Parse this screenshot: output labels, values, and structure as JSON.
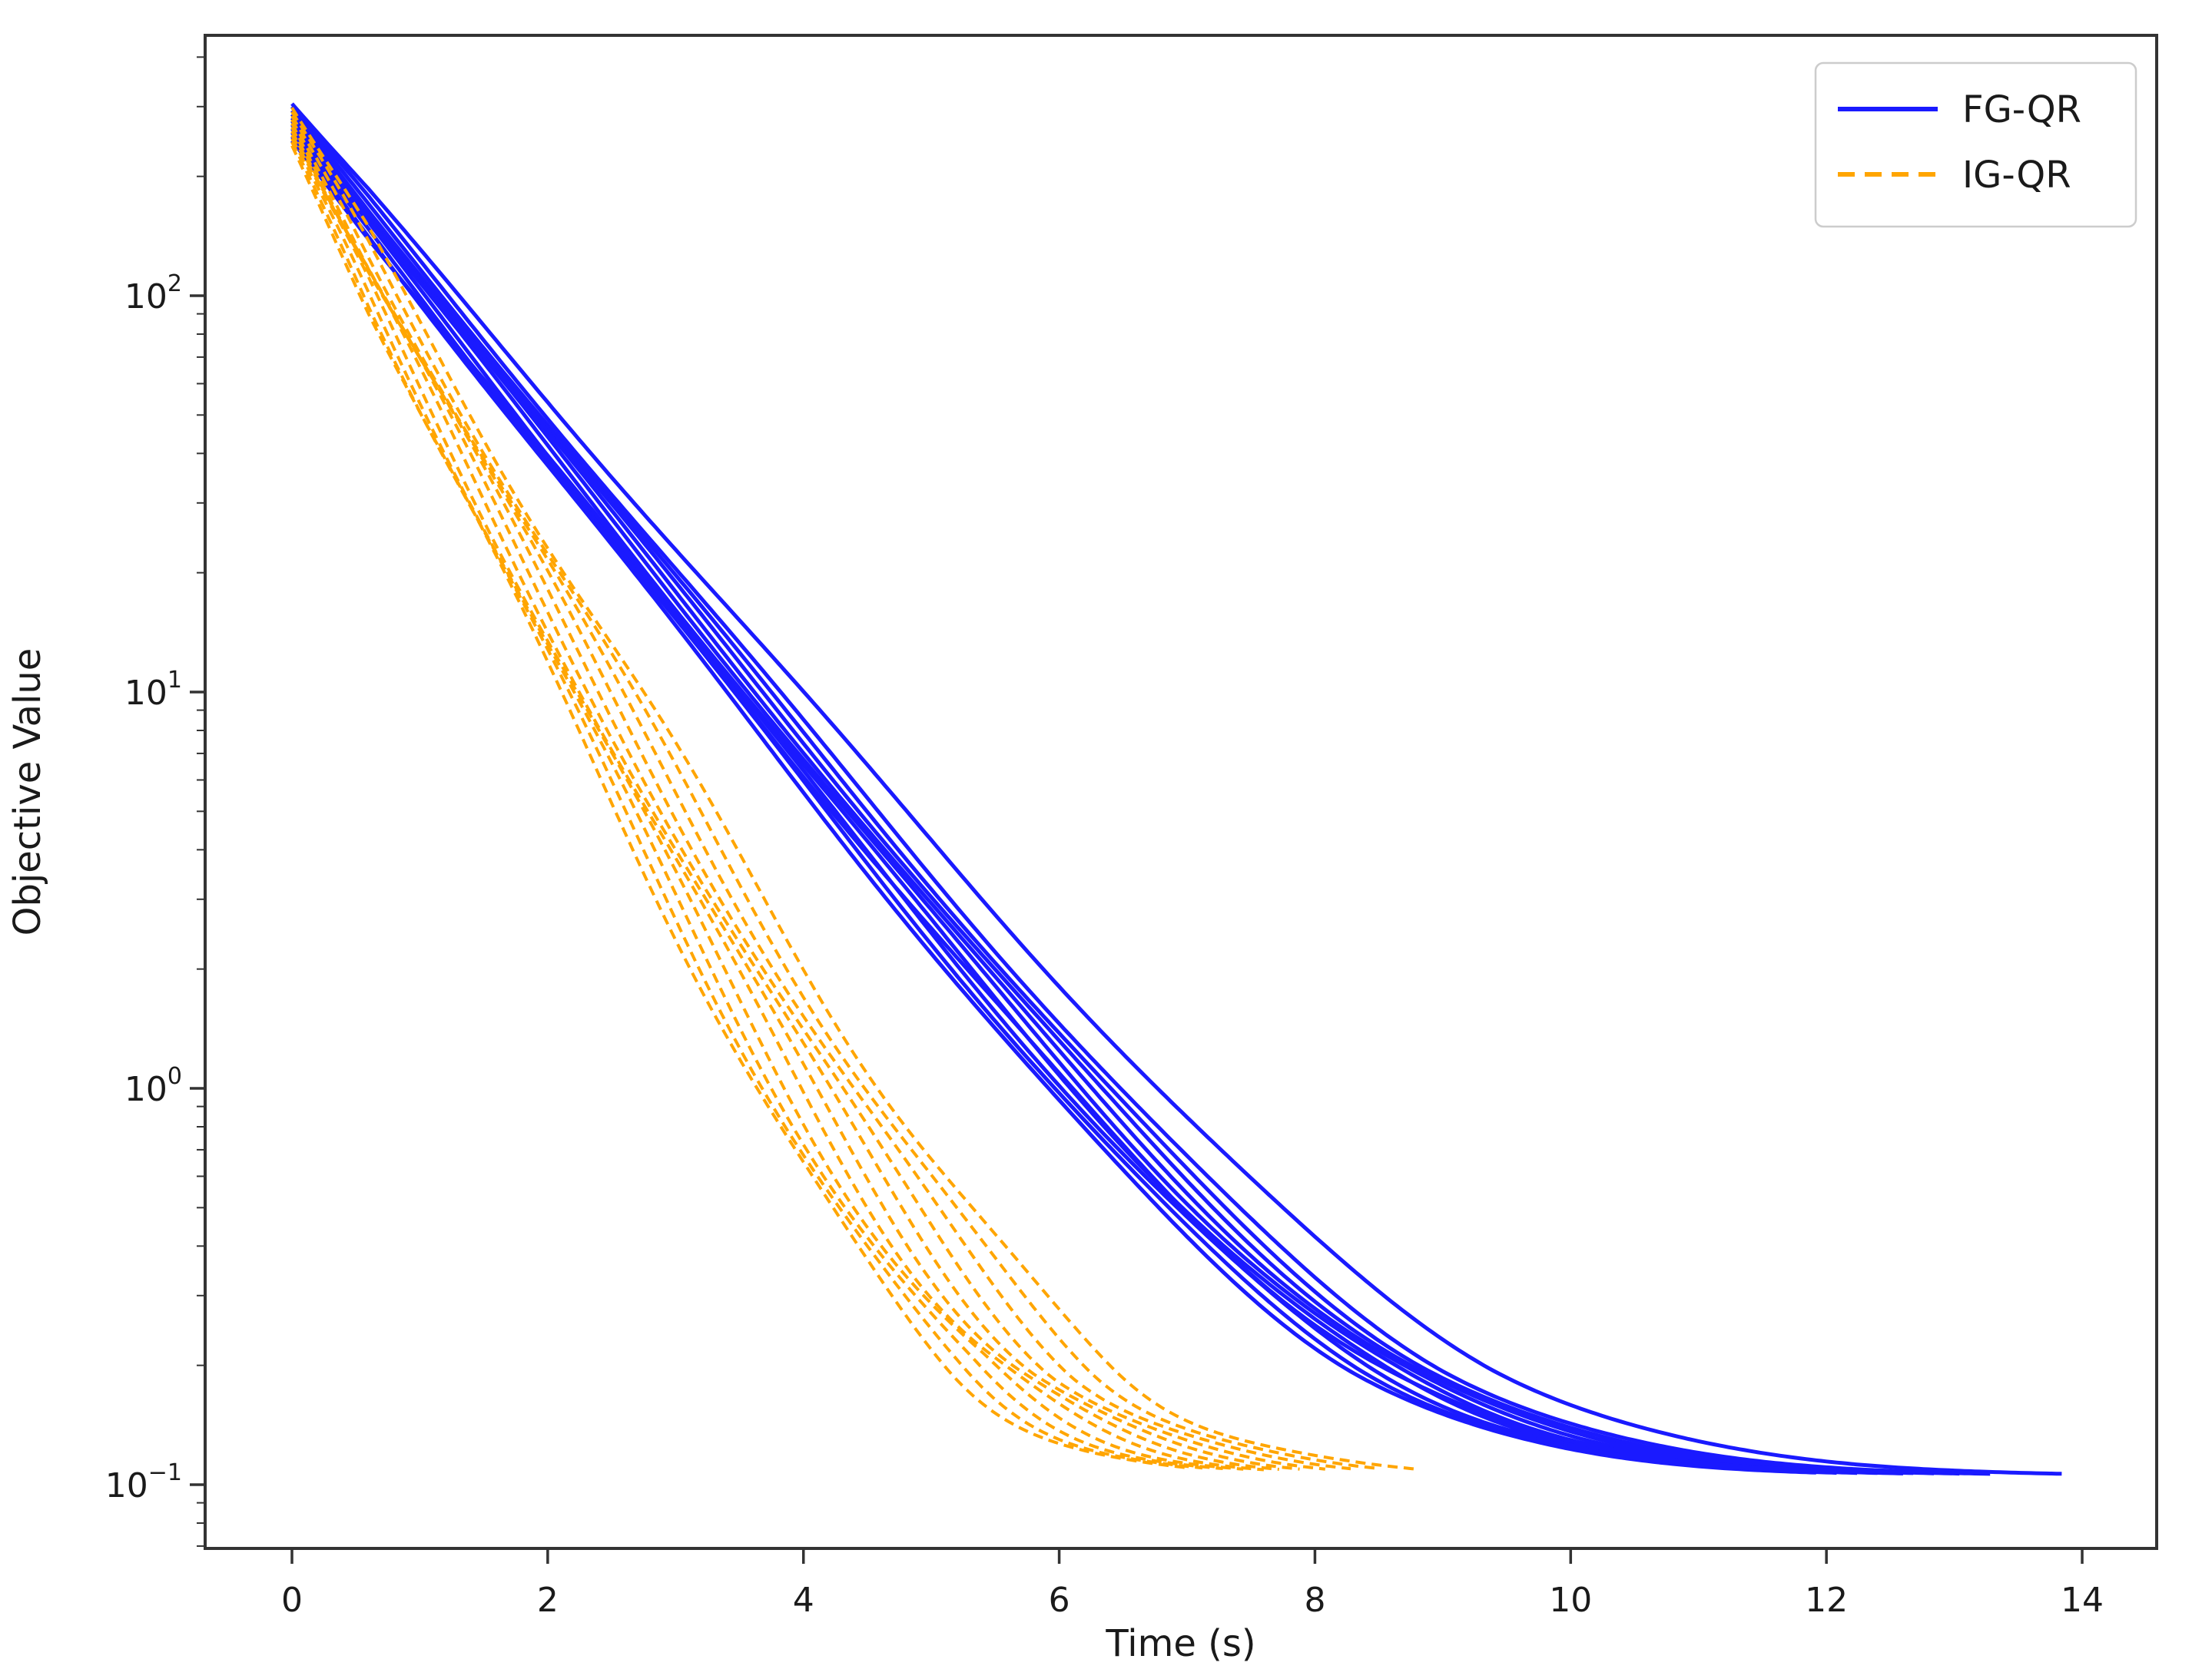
{
  "figure": {
    "background": "#ffffff"
  },
  "chart_data": {
    "type": "line",
    "title": "",
    "xlabel": "Time (s)",
    "ylabel": "Objective Value",
    "xscale": "linear",
    "yscale": "log",
    "grid": false,
    "xlim": [
      -0.68,
      14.58
    ],
    "ylim": [
      0.069,
      455
    ],
    "x_ticks": [
      0,
      2,
      4,
      6,
      8,
      10,
      12,
      14
    ],
    "y_tick_exponents": [
      2,
      1,
      0,
      -1
    ],
    "y_tick_labels": [
      "10^2",
      "10^1",
      "10^0",
      "10^-1"
    ],
    "floor_value": 0.1045,
    "model": "value(t) = floor + start * 10^(-rate * t), straight decay on log axis bending smoothly into a shared floor near 0.105",
    "legend": {
      "position": "upper right",
      "entries": [
        {
          "label": "FG-QR",
          "color": "#1a1aff",
          "style": "solid"
        },
        {
          "label": "IG-QR",
          "color": "#ffa500",
          "style": "dashed"
        }
      ]
    },
    "series": [
      {
        "name": "FG-QR",
        "color": "#1a1aff",
        "line_style": "solid",
        "line_width": 5,
        "wiggle": {
          "amp": 0.009,
          "freq": 1.8
        },
        "runs": [
          {
            "start": 305,
            "rate": 0.374,
            "t_end": 13.87,
            "phase": 0.3
          },
          {
            "start": 300,
            "rate": 0.39,
            "t_end": 13.3,
            "phase": 1.1
          },
          {
            "start": 293,
            "rate": 0.394,
            "t_end": 13.05,
            "phase": 2.0
          },
          {
            "start": 287,
            "rate": 0.397,
            "t_end": 12.85,
            "phase": 2.9
          },
          {
            "start": 281,
            "rate": 0.4,
            "t_end": 12.7,
            "phase": 3.8
          },
          {
            "start": 276,
            "rate": 0.403,
            "t_end": 12.55,
            "phase": 4.7
          },
          {
            "start": 270,
            "rate": 0.406,
            "t_end": 12.4,
            "phase": 5.6
          },
          {
            "start": 264,
            "rate": 0.409,
            "t_end": 12.25,
            "phase": 0.8
          },
          {
            "start": 258,
            "rate": 0.412,
            "t_end": 12.1,
            "phase": 1.7
          },
          {
            "start": 252,
            "rate": 0.415,
            "t_end": 11.95,
            "phase": 2.6
          },
          {
            "start": 246,
            "rate": 0.401,
            "t_end": 12.6,
            "phase": 3.5
          }
        ]
      },
      {
        "name": "IG-QR",
        "color": "#ffa500",
        "line_style": "dashed",
        "line_width": 4,
        "wiggle": {
          "amp": 0.028,
          "freq": 2.4
        },
        "runs": [
          {
            "start": 298,
            "rate": 0.545,
            "t_end": 8.8,
            "phase": 0.5
          },
          {
            "start": 291,
            "rate": 0.558,
            "t_end": 8.5,
            "phase": 1.4
          },
          {
            "start": 284,
            "rate": 0.571,
            "t_end": 8.3,
            "phase": 2.3
          },
          {
            "start": 278,
            "rate": 0.584,
            "t_end": 8.1,
            "phase": 3.2
          },
          {
            "start": 272,
            "rate": 0.596,
            "t_end": 7.9,
            "phase": 4.1
          },
          {
            "start": 266,
            "rate": 0.608,
            "t_end": 7.75,
            "phase": 5.0
          },
          {
            "start": 260,
            "rate": 0.62,
            "t_end": 7.6,
            "phase": 5.9
          },
          {
            "start": 254,
            "rate": 0.632,
            "t_end": 7.45,
            "phase": 0.9
          },
          {
            "start": 249,
            "rate": 0.644,
            "t_end": 7.3,
            "phase": 1.8
          },
          {
            "start": 244,
            "rate": 0.655,
            "t_end": 7.15,
            "phase": 2.7
          },
          {
            "start": 239,
            "rate": 0.665,
            "t_end": 7.0,
            "phase": 3.6
          }
        ]
      }
    ]
  }
}
